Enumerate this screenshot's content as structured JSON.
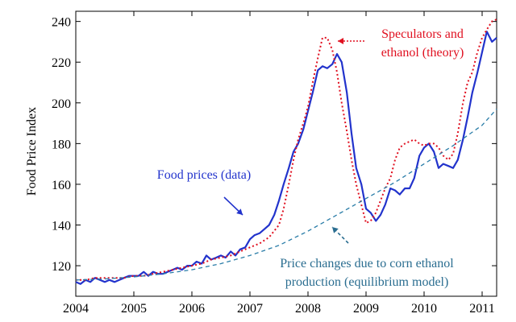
{
  "chart_data": {
    "type": "line",
    "title": "",
    "xlabel": "",
    "ylabel": "Food Price Index",
    "xlim": [
      2004.0,
      2011.25
    ],
    "ylim": [
      105,
      245
    ],
    "xticks": [
      2004,
      2005,
      2006,
      2007,
      2008,
      2009,
      2010,
      2011
    ],
    "xtick_labels": [
      "2004",
      "2005",
      "2006",
      "2007",
      "2008",
      "2009",
      "2010",
      "2011"
    ],
    "yticks": [
      120,
      140,
      160,
      180,
      200,
      220,
      240
    ],
    "ytick_labels": [
      "120",
      "140",
      "160",
      "180",
      "200",
      "220",
      "240"
    ],
    "grid": false,
    "series": [
      {
        "key": "food",
        "color": "#2233cc",
        "style": "solid",
        "x": [
          2004.0,
          2004.08,
          2004.17,
          2004.25,
          2004.33,
          2004.42,
          2004.5,
          2004.58,
          2004.67,
          2004.75,
          2004.83,
          2004.92,
          2005.0,
          2005.08,
          2005.17,
          2005.25,
          2005.33,
          2005.42,
          2005.5,
          2005.58,
          2005.67,
          2005.75,
          2005.83,
          2005.92,
          2006.0,
          2006.08,
          2006.17,
          2006.25,
          2006.33,
          2006.42,
          2006.5,
          2006.58,
          2006.67,
          2006.75,
          2006.83,
          2006.92,
          2007.0,
          2007.08,
          2007.17,
          2007.25,
          2007.33,
          2007.42,
          2007.5,
          2007.58,
          2007.67,
          2007.75,
          2007.83,
          2007.92,
          2008.0,
          2008.08,
          2008.17,
          2008.25,
          2008.33,
          2008.42,
          2008.5,
          2008.58,
          2008.67,
          2008.75,
          2008.83,
          2008.92,
          2009.0,
          2009.08,
          2009.17,
          2009.25,
          2009.33,
          2009.42,
          2009.5,
          2009.58,
          2009.67,
          2009.75,
          2009.83,
          2009.92,
          2010.0,
          2010.08,
          2010.17,
          2010.25,
          2010.33,
          2010.42,
          2010.5,
          2010.58,
          2010.67,
          2010.75,
          2010.83,
          2010.92,
          2011.0,
          2011.08,
          2011.17,
          2011.25
        ],
        "y": [
          112,
          111,
          113,
          112,
          114,
          113,
          112,
          113,
          112,
          113,
          114,
          115,
          115,
          115,
          117,
          115,
          117,
          116,
          116,
          117,
          118,
          119,
          118,
          120,
          120,
          122,
          121,
          125,
          123,
          124,
          125,
          124,
          127,
          125,
          128,
          129,
          133,
          135,
          136,
          138,
          140,
          145,
          152,
          160,
          168,
          176,
          180,
          187,
          196,
          205,
          216,
          218,
          217,
          219,
          224,
          220,
          205,
          185,
          168,
          160,
          148,
          146,
          142,
          145,
          150,
          158,
          157,
          155,
          158,
          158,
          163,
          174,
          178,
          180,
          176,
          168,
          170,
          169,
          168,
          172,
          182,
          193,
          205,
          215,
          225,
          235,
          230,
          232
        ]
      },
      {
        "key": "spec",
        "color": "#e01020",
        "style": "dotted",
        "x": [
          2004.0,
          2004.17,
          2004.33,
          2004.5,
          2004.67,
          2004.83,
          2005.0,
          2005.17,
          2005.33,
          2005.5,
          2005.67,
          2005.83,
          2006.0,
          2006.17,
          2006.33,
          2006.5,
          2006.67,
          2006.83,
          2007.0,
          2007.17,
          2007.33,
          2007.5,
          2007.58,
          2007.67,
          2007.75,
          2007.83,
          2007.92,
          2008.0,
          2008.08,
          2008.17,
          2008.25,
          2008.33,
          2008.42,
          2008.5,
          2008.58,
          2008.67,
          2008.75,
          2008.83,
          2008.92,
          2009.0,
          2009.08,
          2009.17,
          2009.25,
          2009.33,
          2009.42,
          2009.5,
          2009.58,
          2009.67,
          2009.75,
          2009.83,
          2009.92,
          2010.0,
          2010.08,
          2010.17,
          2010.25,
          2010.33,
          2010.42,
          2010.5,
          2010.58,
          2010.67,
          2010.75,
          2010.83,
          2010.92,
          2011.0,
          2011.08,
          2011.17,
          2011.25
        ],
        "y": [
          113,
          113,
          114,
          114,
          114,
          114,
          115,
          115,
          116,
          117,
          118,
          119,
          120,
          121,
          123,
          124,
          125,
          127,
          129,
          131,
          134,
          140,
          148,
          160,
          172,
          182,
          190,
          198,
          210,
          222,
          232,
          232,
          226,
          215,
          200,
          186,
          172,
          160,
          150,
          141,
          142,
          146,
          152,
          158,
          163,
          172,
          178,
          180,
          181,
          182,
          180,
          179,
          180,
          180,
          178,
          174,
          172,
          175,
          185,
          200,
          210,
          215,
          225,
          232,
          236,
          240,
          241
        ]
      },
      {
        "key": "eq",
        "color": "#2a7da8",
        "style": "dashed",
        "x": [
          2004.0,
          2004.5,
          2005.0,
          2005.5,
          2006.0,
          2006.5,
          2007.0,
          2007.5,
          2008.0,
          2008.5,
          2009.0,
          2009.5,
          2010.0,
          2010.5,
          2011.0,
          2011.25
        ],
        "y": [
          113,
          113.5,
          114.5,
          116,
          118,
          121,
          125,
          130,
          137,
          145,
          153,
          161,
          170,
          179,
          189,
          197
        ]
      }
    ],
    "annotations": [
      {
        "key": "spec",
        "text": [
          "Speculators and",
          "ethanol (theory)"
        ],
        "color": "#e01020"
      },
      {
        "key": "food",
        "text": [
          "Food prices (data)"
        ],
        "color": "#2233cc"
      },
      {
        "key": "eq",
        "text": [
          "Price changes due to corn ethanol",
          "production (equilibrium model)"
        ],
        "color": "#2a6d90"
      }
    ]
  }
}
